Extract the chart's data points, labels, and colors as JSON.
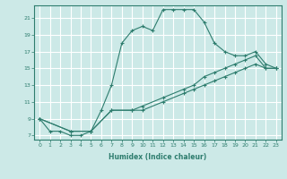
{
  "xlabel": "Humidex (Indice chaleur)",
  "xlim": [
    -0.5,
    23.5
  ],
  "ylim": [
    6.5,
    22.5
  ],
  "xticks": [
    0,
    1,
    2,
    3,
    4,
    5,
    6,
    7,
    8,
    9,
    10,
    11,
    12,
    13,
    14,
    15,
    16,
    17,
    18,
    19,
    20,
    21,
    22,
    23
  ],
  "yticks": [
    7,
    9,
    11,
    13,
    15,
    17,
    19,
    21
  ],
  "line_color": "#2e7d6e",
  "bg_color": "#cce9e7",
  "grid_color": "#ffffff",
  "lines": [
    {
      "x": [
        0,
        1,
        2,
        3,
        4,
        5,
        6,
        7,
        8,
        9,
        10,
        11,
        12,
        13,
        14,
        15,
        16,
        17,
        18,
        19,
        20,
        21,
        22,
        23
      ],
      "y": [
        9,
        7.5,
        7.5,
        7,
        7,
        7.5,
        10,
        13,
        18,
        19.5,
        20,
        19.5,
        22,
        22,
        22,
        22,
        20.5,
        18,
        17,
        16.5,
        16.5,
        17,
        15.5,
        15
      ]
    },
    {
      "x": [
        0,
        3,
        5,
        7,
        9,
        10,
        12,
        14,
        15,
        16,
        17,
        18,
        19,
        20,
        21,
        22,
        23
      ],
      "y": [
        9,
        7.5,
        7.5,
        10,
        10,
        10.5,
        11.5,
        12.5,
        13,
        14,
        14.5,
        15,
        15.5,
        16,
        16.5,
        15,
        15
      ]
    },
    {
      "x": [
        0,
        3,
        5,
        7,
        9,
        10,
        12,
        14,
        15,
        16,
        17,
        18,
        19,
        20,
        21,
        22,
        23
      ],
      "y": [
        9,
        7.5,
        7.5,
        10,
        10,
        10,
        11,
        12,
        12.5,
        13,
        13.5,
        14,
        14.5,
        15,
        15.5,
        15,
        15
      ]
    }
  ]
}
